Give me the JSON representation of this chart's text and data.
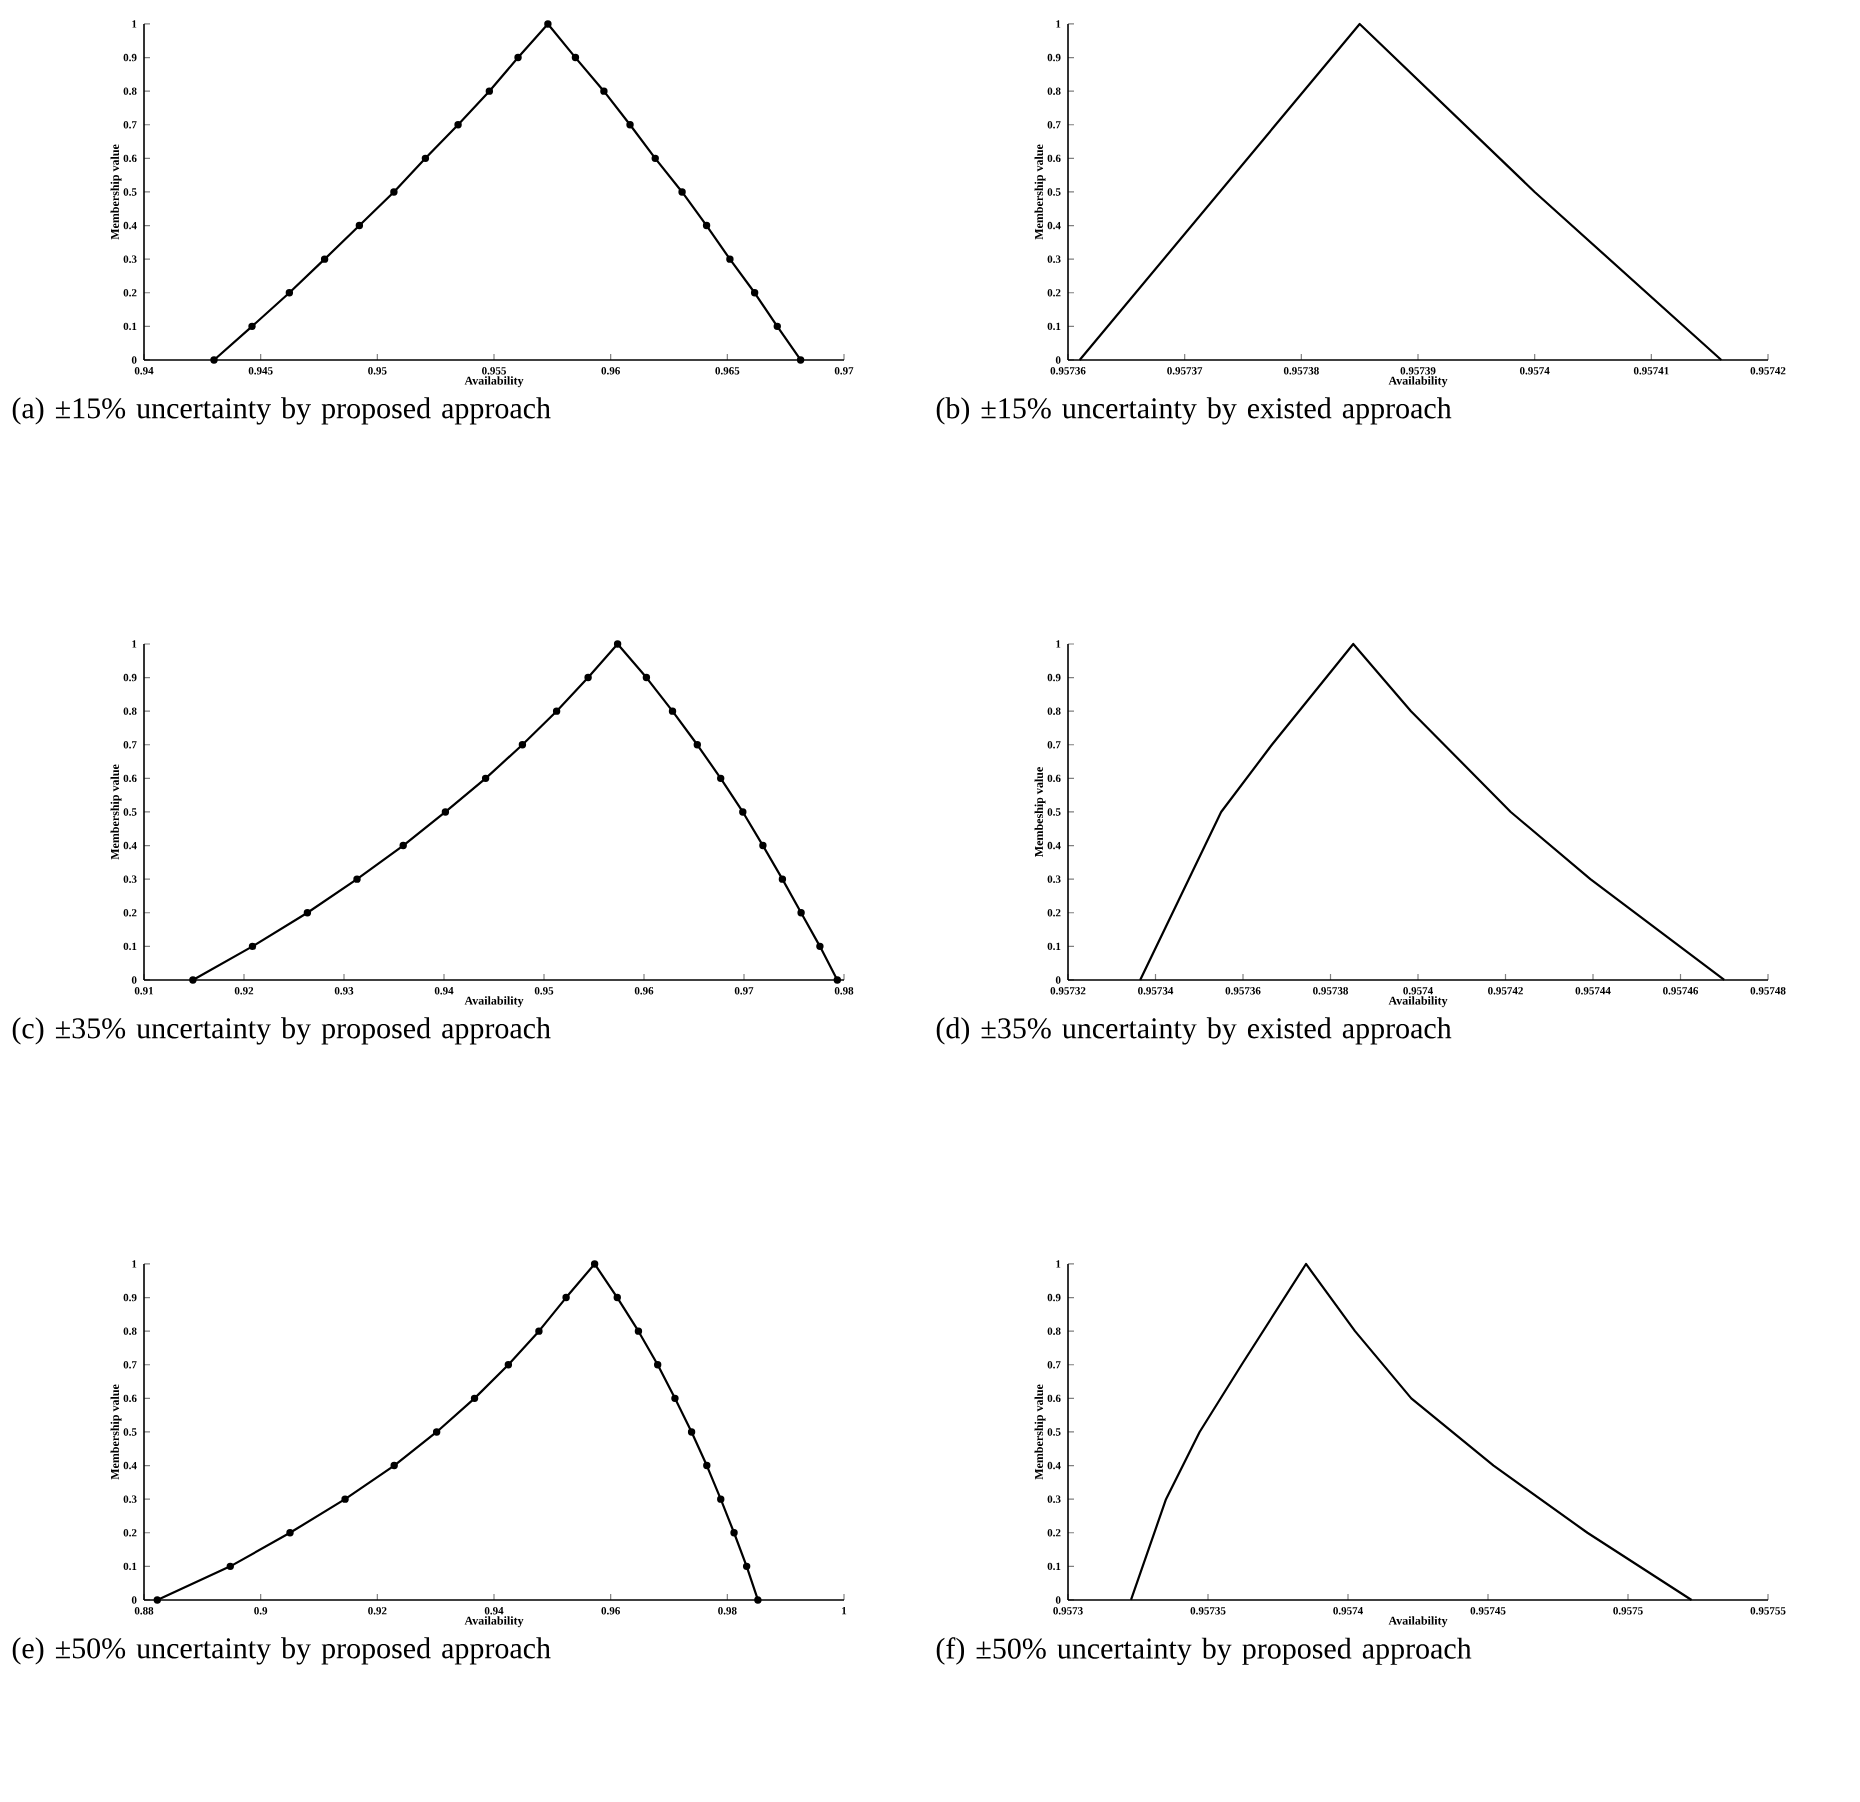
{
  "chart_data": [
    {
      "type": "line",
      "xlabel": "Availability",
      "ylabel": "Membership value",
      "marker": "circle",
      "xlim": [
        0.94,
        0.97
      ],
      "ylim": [
        0,
        1
      ],
      "xticks": [
        0.94,
        0.945,
        0.95,
        0.955,
        0.96,
        0.965,
        0.97
      ],
      "yticks": [
        0,
        0.1,
        0.2,
        0.3,
        0.4,
        0.5,
        0.6,
        0.7,
        0.8,
        0.9,
        1
      ],
      "annotations": [
        "(a) ±15% uncertainty by proposed approach"
      ],
      "series": [
        {
          "color": "#000000",
          "x": [
            0.943,
            0.94463,
            0.94623,
            0.94774,
            0.94923,
            0.95071,
            0.95206,
            0.95346,
            0.9548,
            0.95603,
            0.95731,
            0.95849,
            0.95971,
            0.96083,
            0.96191,
            0.96306,
            0.96411,
            0.96511,
            0.96617,
            0.96714,
            0.96814
          ],
          "values": [
            0,
            0.1,
            0.2,
            0.3,
            0.4,
            0.5,
            0.6,
            0.7,
            0.8,
            0.9,
            1,
            0.9,
            0.8,
            0.7,
            0.6,
            0.5,
            0.4,
            0.3,
            0.2,
            0.1,
            0
          ]
        }
      ]
    },
    {
      "type": "line",
      "xlabel": "Availability",
      "ylabel": "Membership value",
      "xlim": [
        0.95736,
        0.95742
      ],
      "ylim": [
        0,
        1
      ],
      "xticks": [
        0.95736,
        0.95737,
        0.95738,
        0.95739,
        0.9574,
        0.95741,
        0.95742
      ],
      "yticks": [
        0,
        0.1,
        0.2,
        0.3,
        0.4,
        0.5,
        0.6,
        0.7,
        0.8,
        0.9,
        1
      ],
      "annotations": [
        "(b) ±15% uncertainty by existed approach"
      ],
      "series": [
        {
          "color": "#000000",
          "x": [
            0.957361,
            0.957373,
            0.957385,
            0.9574,
            0.957416
          ],
          "values": [
            0,
            0.5,
            1,
            0.5,
            0
          ]
        }
      ]
    },
    {
      "type": "line",
      "xlabel": "Availability",
      "ylabel": "Membership value",
      "marker": "circle",
      "xlim": [
        0.91,
        0.98
      ],
      "ylim": [
        0,
        1
      ],
      "xticks": [
        0.91,
        0.92,
        0.93,
        0.94,
        0.95,
        0.96,
        0.97,
        0.98
      ],
      "yticks": [
        0,
        0.1,
        0.2,
        0.3,
        0.4,
        0.5,
        0.6,
        0.7,
        0.8,
        0.9,
        1
      ],
      "annotations": [
        "(c) ±35% uncertainty by proposed approach"
      ],
      "series": [
        {
          "color": "#000000",
          "x": [
            0.91489,
            0.92085,
            0.92634,
            0.9313,
            0.93592,
            0.94014,
            0.94416,
            0.94784,
            0.95126,
            0.95441,
            0.95736,
            0.96024,
            0.96285,
            0.96533,
            0.96767,
            0.96988,
            0.97189,
            0.97384,
            0.97571,
            0.97759,
            0.97933
          ],
          "values": [
            0,
            0.1,
            0.2,
            0.3,
            0.4,
            0.5,
            0.6,
            0.7,
            0.8,
            0.9,
            1,
            0.9,
            0.8,
            0.7,
            0.6,
            0.5,
            0.4,
            0.3,
            0.2,
            0.1,
            0
          ]
        }
      ]
    },
    {
      "type": "line",
      "xlabel": "Availability",
      "ylabel": "Membeship value",
      "xlim": [
        0.95732,
        0.95748
      ],
      "ylim": [
        0,
        1
      ],
      "xticks": [
        0.95732,
        0.95734,
        0.95736,
        0.95738,
        0.9574,
        0.95742,
        0.95744,
        0.95746,
        0.95748
      ],
      "yticks": [
        0,
        0.1,
        0.2,
        0.3,
        0.4,
        0.5,
        0.6,
        0.7,
        0.8,
        0.9,
        1
      ],
      "annotations": [
        "(d) ±35% uncertainty by existed approach"
      ],
      "series": [
        {
          "color": "#000000",
          "x": [
            0.9573365,
            0.9573476,
            0.957355,
            0.9573666,
            0.9573852,
            0.9573984,
            0.9574212,
            0.9574394,
            0.95747
          ],
          "values": [
            0,
            0.3,
            0.5,
            0.7,
            1,
            0.8,
            0.5,
            0.3,
            0
          ]
        }
      ]
    },
    {
      "type": "line",
      "xlabel": "Availability",
      "ylabel": "Membership value",
      "marker": "circle",
      "xlim": [
        0.88,
        1
      ],
      "ylim": [
        0,
        1
      ],
      "xticks": [
        0.88,
        0.9,
        0.92,
        0.94,
        0.96,
        0.98,
        1
      ],
      "yticks": [
        0,
        0.1,
        0.2,
        0.3,
        0.4,
        0.5,
        0.6,
        0.7,
        0.8,
        0.9,
        1
      ],
      "annotations": [
        "(e) ±50% uncertainty by proposed approach"
      ],
      "series": [
        {
          "color": "#000000",
          "x": [
            0.88228,
            0.89479,
            0.90503,
            0.91447,
            0.92289,
            0.93017,
            0.93666,
            0.94246,
            0.9477,
            0.95236,
            0.95725,
            0.96113,
            0.96476,
            0.96806,
            0.97102,
            0.97387,
            0.97648,
            0.97887,
            0.98115,
            0.98331,
            0.98524
          ],
          "values": [
            0,
            0.1,
            0.2,
            0.3,
            0.4,
            0.5,
            0.6,
            0.7,
            0.8,
            0.9,
            1,
            0.9,
            0.8,
            0.7,
            0.6,
            0.5,
            0.4,
            0.3,
            0.2,
            0.1,
            0
          ]
        }
      ]
    },
    {
      "type": "line",
      "xlabel": "Availability",
      "ylabel": "Membership value",
      "xlim": [
        0.9573,
        0.95755
      ],
      "ylim": [
        0,
        1
      ],
      "xticks": [
        0.9573,
        0.95735,
        0.9574,
        0.95745,
        0.9575,
        0.95755
      ],
      "yticks": [
        0,
        0.1,
        0.2,
        0.3,
        0.4,
        0.5,
        0.6,
        0.7,
        0.8,
        0.9,
        1
      ],
      "annotations": [
        "(f) ±50% uncertainty by proposed approach"
      ],
      "series": [
        {
          "color": "#000000",
          "x": [
            0.9573225,
            0.957335,
            0.957347,
            0.957362,
            0.957385,
            0.9574025,
            0.9574226,
            0.957452,
            0.9574855,
            0.9575227
          ],
          "values": [
            0,
            0.3,
            0.5,
            0.7,
            1,
            0.8,
            0.6,
            0.4,
            0.2,
            0
          ]
        }
      ]
    }
  ]
}
